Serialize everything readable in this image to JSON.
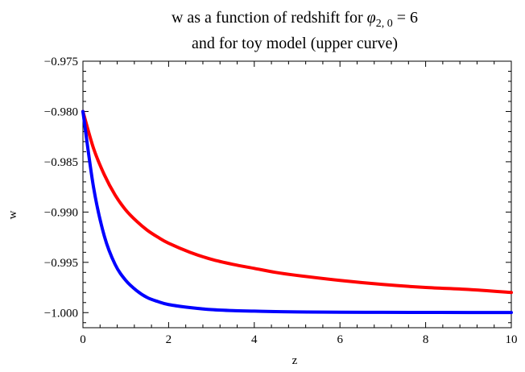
{
  "chart_data": {
    "type": "line",
    "title_lines": [
      {
        "before": "w as a function of redshift for ",
        "symbol": "φ",
        "subscript": "2, 0",
        "after": " = 6"
      },
      {
        "before": "and for toy model (upper curve)"
      }
    ],
    "xlabel": "z",
    "ylabel": "w",
    "xlim": [
      0,
      10
    ],
    "ylim": [
      -1.0015,
      -0.975
    ],
    "x_ticks": [
      0,
      2,
      4,
      6,
      8,
      10
    ],
    "x_tick_labels": [
      "0",
      "2",
      "4",
      "6",
      "8",
      "10"
    ],
    "y_ticks": [
      -0.975,
      -0.98,
      -0.985,
      -0.99,
      -0.995,
      -1.0
    ],
    "y_tick_labels": [
      "−0.975",
      "−0.980",
      "−0.985",
      "−0.990",
      "−0.995",
      "−1.000"
    ],
    "grid": false,
    "frame": "box",
    "series": [
      {
        "color": "#ff0000",
        "x": [
          0,
          0.25,
          0.5,
          0.75,
          1,
          1.25,
          1.5,
          1.75,
          2,
          2.5,
          3,
          3.5,
          4,
          4.5,
          5,
          6,
          7,
          8,
          9,
          10
        ],
        "y": [
          -0.98,
          -0.9837,
          -0.9863,
          -0.9883,
          -0.9898,
          -0.9909,
          -0.9918,
          -0.9925,
          -0.9931,
          -0.994,
          -0.9947,
          -0.9952,
          -0.9956,
          -0.996,
          -0.9963,
          -0.9968,
          -0.9972,
          -0.9975,
          -0.9977,
          -0.998
        ]
      },
      {
        "color": "#0000ff",
        "x": [
          0,
          0.25,
          0.5,
          0.75,
          1,
          1.25,
          1.5,
          1.75,
          2,
          2.5,
          3,
          3.5,
          4,
          4.5,
          5,
          6,
          7,
          8,
          9,
          10
        ],
        "y": [
          -0.98,
          -0.9876,
          -0.9924,
          -0.9952,
          -0.9968,
          -0.9978,
          -0.9985,
          -0.9989,
          -0.9992,
          -0.9995,
          -0.9997,
          -0.9998,
          -0.99985,
          -0.9999,
          -0.99993,
          -0.99996,
          -0.99997,
          -0.99998,
          -0.99999,
          -0.99999
        ]
      }
    ]
  }
}
